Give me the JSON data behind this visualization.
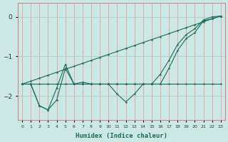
{
  "xlabel": "Humidex (Indice chaleur)",
  "ylabel": "",
  "bg_color": "#cce8e4",
  "grid_color": "#aaccc8",
  "line_color": "#1a6b5a",
  "x": [
    0,
    1,
    2,
    3,
    4,
    5,
    6,
    7,
    8,
    9,
    10,
    11,
    12,
    13,
    14,
    15,
    16,
    17,
    18,
    19,
    20,
    21,
    22,
    23
  ],
  "series_flat": [
    -1.7,
    -1.7,
    -1.7,
    -1.7,
    -1.7,
    -1.7,
    -1.7,
    -1.7,
    -1.7,
    -1.7,
    -1.7,
    -1.7,
    -1.7,
    -1.7,
    -1.7,
    -1.7,
    -1.7,
    -1.7,
    -1.7,
    -1.7,
    -1.7,
    -1.7,
    -1.7,
    -1.7
  ],
  "series_diag": [
    -1.7,
    -1.625,
    -1.55,
    -1.475,
    -1.4,
    -1.325,
    -1.25,
    -1.175,
    -1.1,
    -1.025,
    -0.95,
    -0.875,
    -0.8,
    -0.725,
    -0.65,
    -0.575,
    -0.5,
    -0.425,
    -0.35,
    -0.275,
    -0.2,
    -0.125,
    -0.05,
    0.02
  ],
  "series_wiggly": [
    -1.7,
    -1.7,
    -2.25,
    -2.35,
    -2.1,
    -1.3,
    -1.7,
    -1.7,
    -1.7,
    -1.7,
    -1.7,
    -1.95,
    -2.15,
    -1.95,
    -1.7,
    -1.7,
    -1.45,
    -1.1,
    -0.7,
    -0.45,
    -0.3,
    -0.08,
    0.0,
    0.02
  ],
  "series_peaked": [
    -1.7,
    -1.7,
    -2.25,
    -2.35,
    -1.8,
    -1.2,
    -1.7,
    -1.65,
    -1.7,
    -1.7,
    -1.7,
    -1.7,
    -1.7,
    -1.7,
    -1.7,
    -1.7,
    -1.7,
    -1.3,
    -0.85,
    -0.55,
    -0.4,
    -0.1,
    -0.05,
    0.02
  ],
  "ylim": [
    -2.6,
    0.35
  ],
  "yticks": [
    0,
    -1,
    -2
  ],
  "xlim": [
    -0.5,
    23.5
  ]
}
